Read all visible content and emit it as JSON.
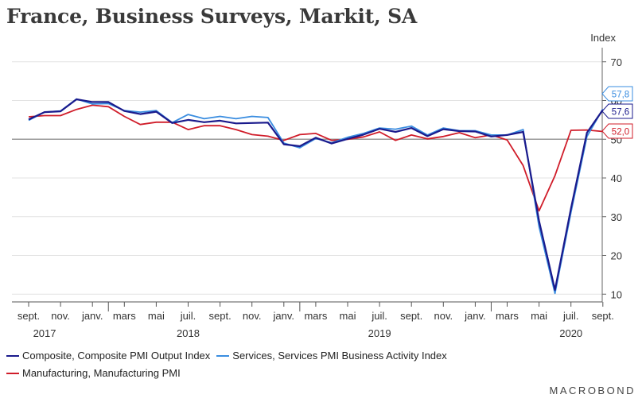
{
  "title": "France, Business Surveys, Markit, SA",
  "brand": "MACROBOND",
  "chart_data": {
    "type": "line",
    "ylabel": "Index",
    "ylim": [
      8,
      72
    ],
    "y_ticks": [
      "10",
      "20",
      "30",
      "40",
      "50",
      "60",
      "70"
    ],
    "reference_line": 50,
    "grid": true,
    "legend_position": "bottom-left",
    "x_tick_labels": [
      "sept.",
      "nov.",
      "janv.",
      "mars",
      "mai",
      "juil.",
      "sept.",
      "nov.",
      "janv.",
      "mars",
      "mai",
      "juil.",
      "sept.",
      "nov.",
      "janv.",
      "mars",
      "mai",
      "juil.",
      "sept."
    ],
    "year_labels": [
      {
        "year": "2017",
        "month_index": 1
      },
      {
        "year": "2018",
        "month_index": 10
      },
      {
        "year": "2019",
        "month_index": 22
      },
      {
        "year": "2020",
        "month_index": 34
      }
    ],
    "x_start": "2017-08",
    "series": [
      {
        "name": "Composite, Composite PMI Output Index",
        "color": "#1a1a8c",
        "end_label": "57,6",
        "values": [
          55.1,
          57.0,
          57.2,
          60.3,
          59.6,
          59.6,
          57.3,
          56.5,
          57.1,
          54.2,
          55.0,
          54.4,
          54.8,
          54.1,
          54.2,
          54.3,
          48.7,
          48.2,
          50.4,
          48.9,
          50.1,
          51.2,
          52.7,
          51.9,
          52.9,
          50.8,
          52.6,
          52.1,
          52.0,
          50.7,
          51.1,
          51.9,
          28.9,
          11.1,
          32.1,
          51.7,
          57.6
        ]
      },
      {
        "name": "Services, Services PMI Business Activity Index",
        "color": "#3a8de0",
        "end_label": "57,8",
        "values": [
          54.9,
          57.0,
          57.3,
          60.4,
          59.1,
          59.2,
          57.4,
          57.0,
          57.4,
          54.3,
          56.4,
          55.3,
          55.9,
          55.3,
          55.9,
          55.6,
          49.0,
          47.8,
          50.2,
          49.1,
          50.5,
          51.5,
          52.9,
          52.6,
          53.4,
          51.1,
          52.9,
          52.2,
          52.2,
          51.1,
          51.1,
          52.5,
          27.4,
          10.2,
          31.1,
          50.7,
          57.8
        ]
      },
      {
        "name": "Manufacturing, Manufacturing PMI",
        "color": "#d01d2a",
        "end_label": "52,0",
        "values": [
          55.8,
          56.1,
          56.1,
          57.7,
          58.8,
          58.4,
          55.9,
          53.8,
          54.4,
          54.4,
          52.5,
          53.5,
          53.5,
          52.5,
          51.2,
          50.8,
          49.7,
          51.2,
          51.5,
          49.7,
          50.0,
          50.6,
          51.9,
          49.7,
          51.1,
          50.1,
          50.7,
          51.7,
          50.4,
          51.1,
          49.8,
          43.2,
          31.5,
          40.6,
          52.3,
          52.4,
          52.0
        ]
      }
    ]
  }
}
